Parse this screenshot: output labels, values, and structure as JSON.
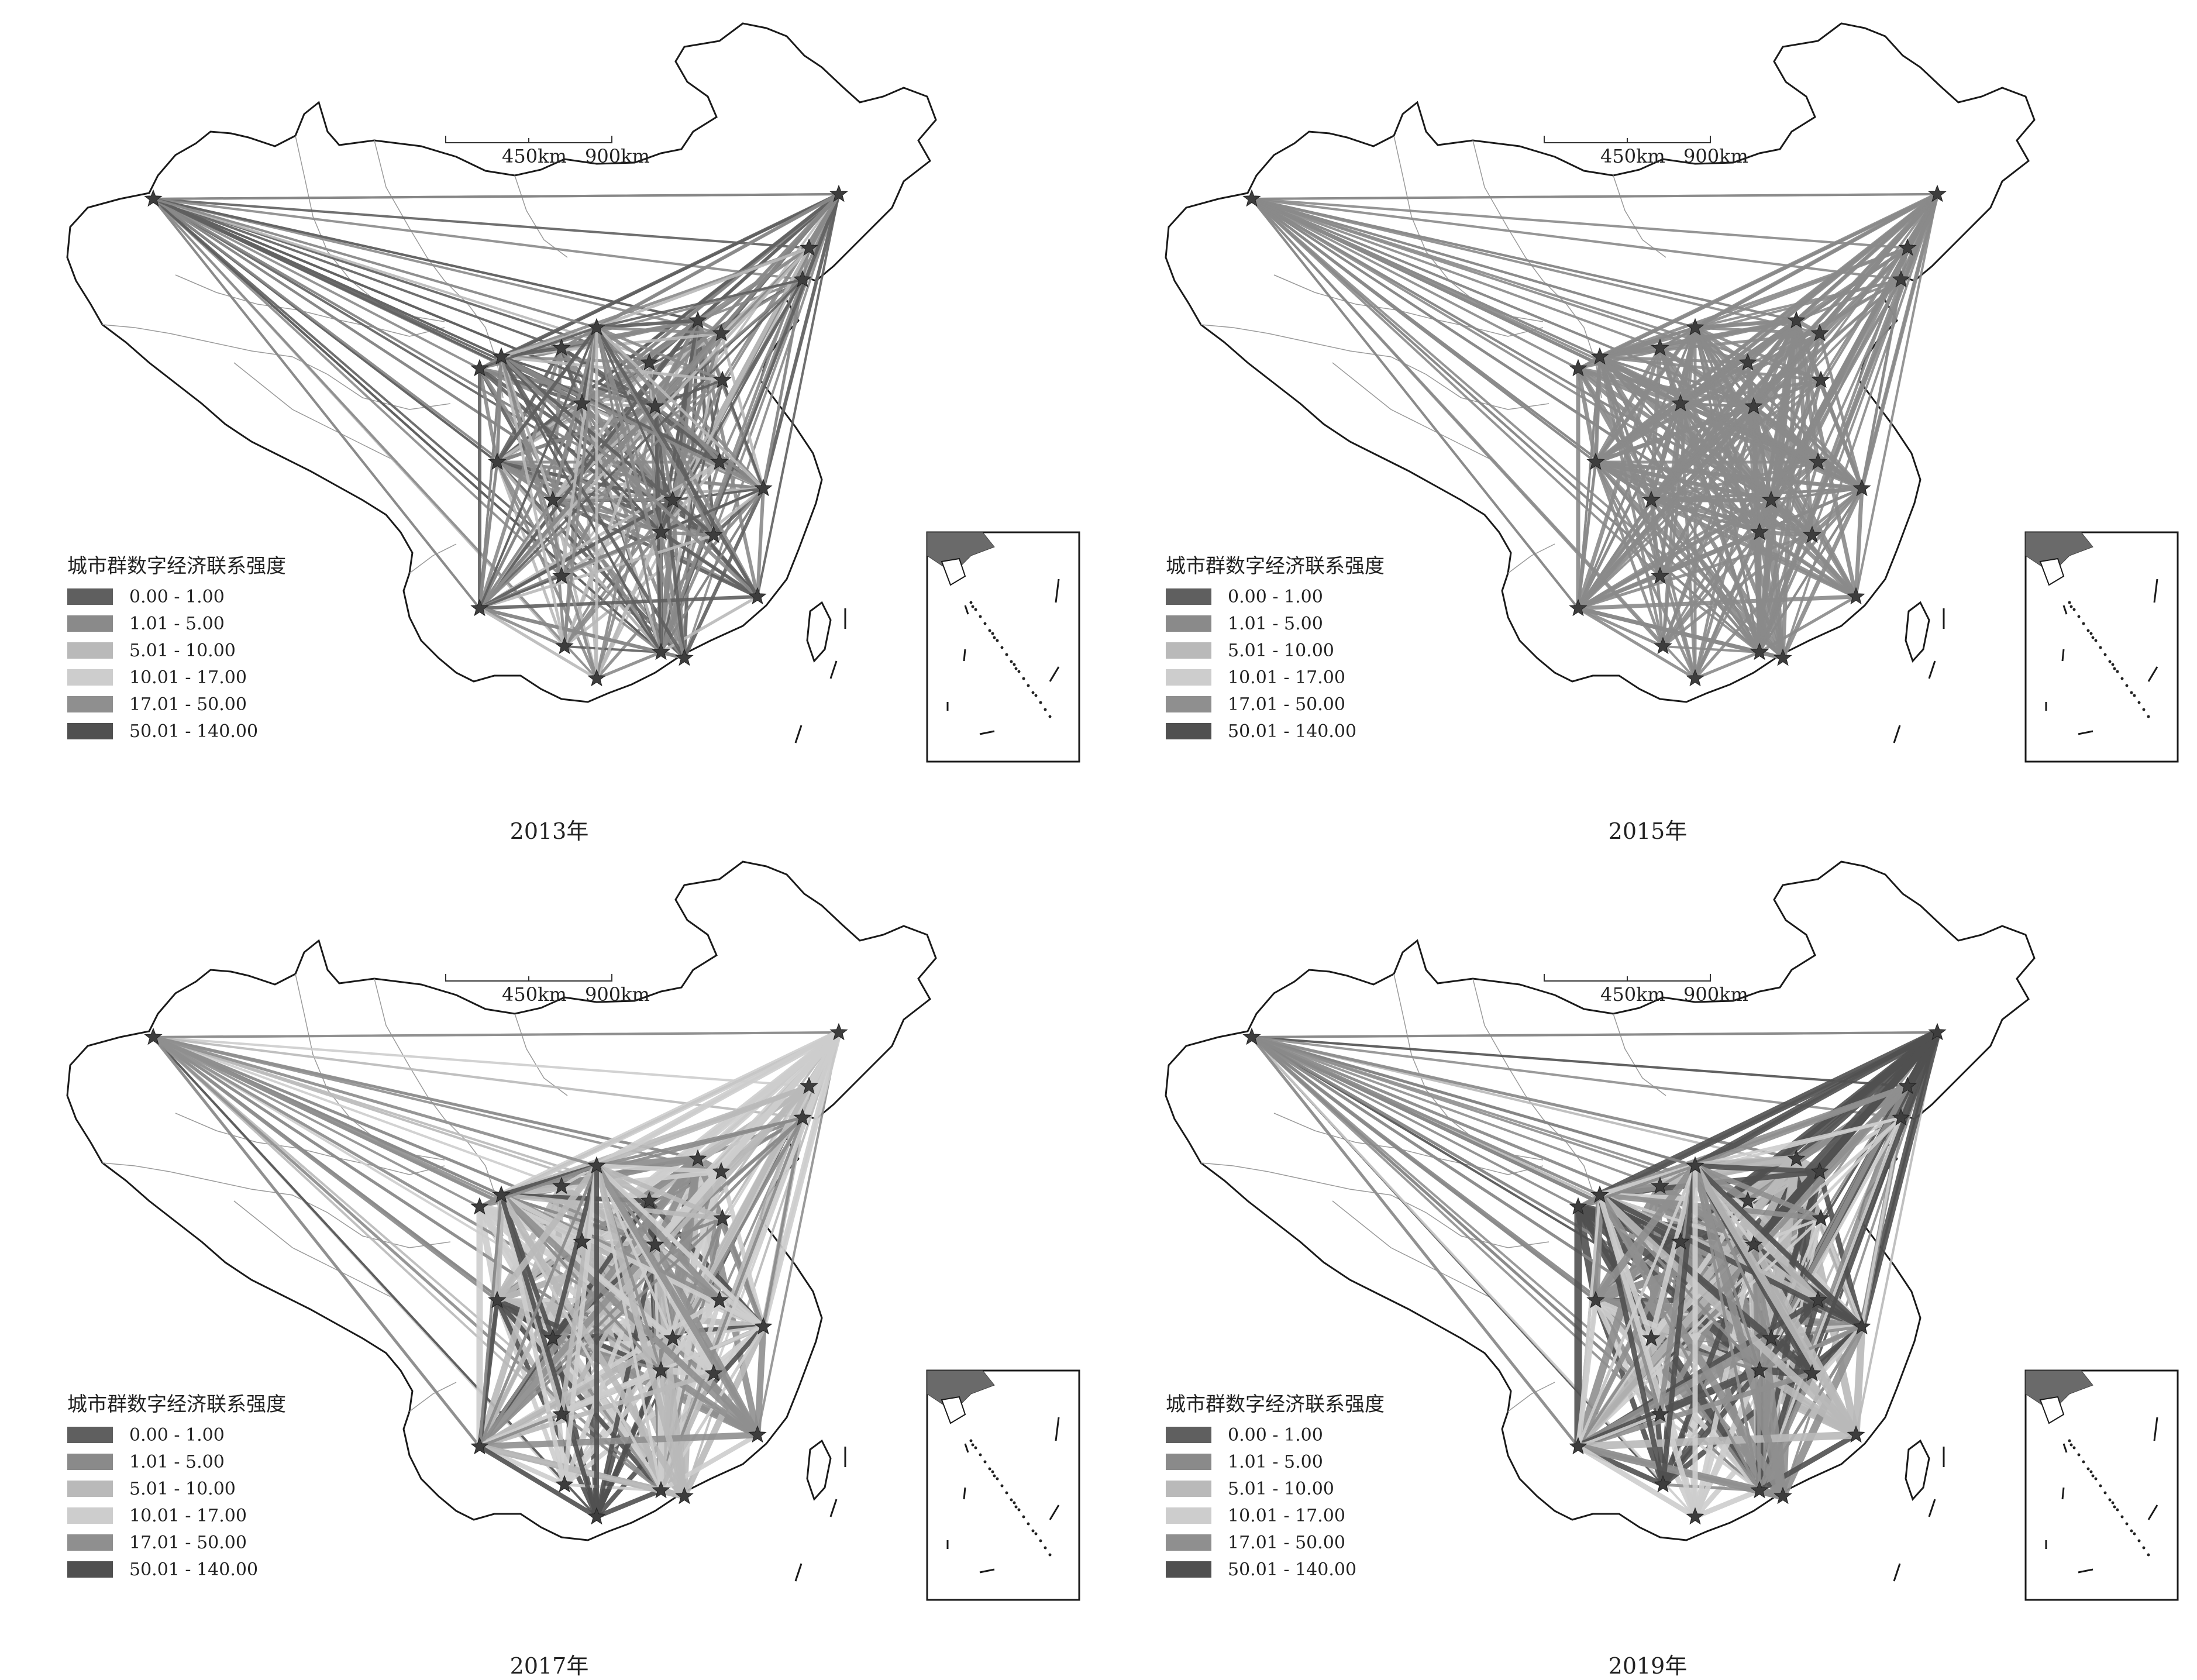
{
  "panels": [
    {
      "year_label": "2013年",
      "style": "p2013"
    },
    {
      "year_label": "2015年",
      "style": "p2015"
    },
    {
      "year_label": "2017年",
      "style": "p2017"
    },
    {
      "year_label": "2019年",
      "style": "p2019"
    }
  ],
  "legend": {
    "title": "城市群数字经济联系强度",
    "classes": [
      {
        "label": "0.00 - 1.00",
        "color": "#5f5f5f"
      },
      {
        "label": "1.01 - 5.00",
        "color": "#8a8a8a"
      },
      {
        "label": "5.01 - 10.00",
        "color": "#b9b9b9"
      },
      {
        "label": "10.01 - 17.00",
        "color": "#cdcdcd"
      },
      {
        "label": "17.01 - 50.00",
        "color": "#8f8f8f"
      },
      {
        "label": "50.01 - 140.00",
        "color": "#505050"
      }
    ]
  },
  "scale_bar": {
    "labels": [
      "450km",
      "900km"
    ]
  },
  "colors": {
    "outline": "#1a1a1a",
    "province_border": "#9a9a9a",
    "region_dark": "#6a6a6a",
    "region_mid": "#8c8c8c",
    "region_light": "#c8c8c8",
    "node_star": "#3d3d3d"
  }
}
